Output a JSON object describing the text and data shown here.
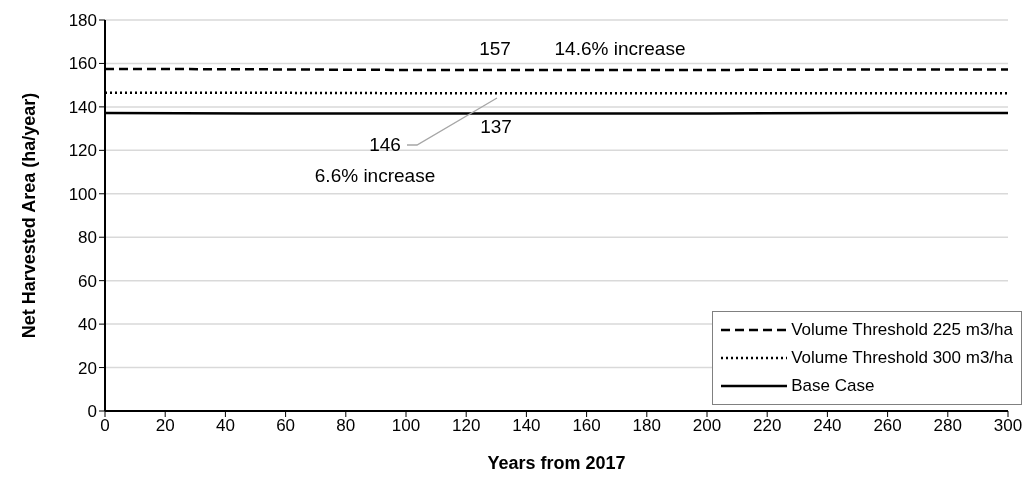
{
  "chart_data": {
    "type": "line",
    "xlabel": "Years from 2017",
    "ylabel": "Net Harvested Area (ha/year)",
    "x": [
      0,
      50,
      100,
      150,
      200,
      250,
      300
    ],
    "series": [
      {
        "name": "Volume Threshold 225 m3/ha",
        "color": "#000000",
        "line_style": "dashed",
        "values": [
          157.5,
          157.3,
          157,
          157,
          157,
          157.2,
          157.2
        ]
      },
      {
        "name": "Volume Threshold 300 m3/ha",
        "color": "#000000",
        "line_style": "dotted",
        "values": [
          146.5,
          146.5,
          146.3,
          146.3,
          146.3,
          146.3,
          146.3
        ]
      },
      {
        "name": "Base Case",
        "color": "#000000",
        "line_style": "solid",
        "values": [
          137.2,
          137,
          137,
          137,
          137,
          137.2,
          137.2
        ]
      }
    ],
    "xlim": [
      0,
      300
    ],
    "xticks": [
      0,
      20,
      40,
      60,
      80,
      100,
      120,
      140,
      160,
      180,
      200,
      220,
      240,
      260,
      280,
      300
    ],
    "ylim": [
      0,
      180
    ],
    "yticks": [
      0,
      20,
      40,
      60,
      80,
      100,
      120,
      140,
      160,
      180
    ],
    "grid": "y",
    "legend": "bottom right",
    "marker": "none",
    "annotations": [
      "157",
      "14.6% increase",
      "146",
      "6.6% increase",
      "137"
    ]
  }
}
